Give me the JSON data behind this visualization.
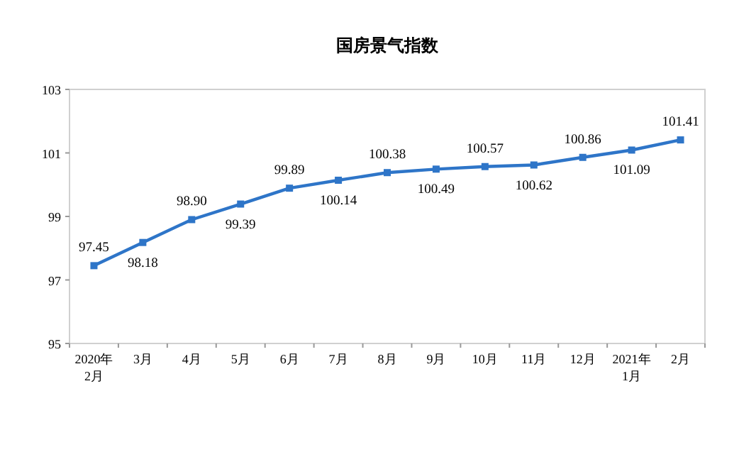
{
  "chart_data": {
    "type": "line",
    "title": "国房景气指数",
    "categories": [
      "2020年\n2月",
      "3月",
      "4月",
      "5月",
      "6月",
      "7月",
      "8月",
      "9月",
      "10月",
      "11月",
      "12月",
      "2021年\n1月",
      "2月"
    ],
    "series": [
      {
        "color": "#2e75c8",
        "values": [
          97.45,
          98.18,
          98.9,
          99.39,
          99.89,
          100.14,
          100.38,
          100.49,
          100.57,
          100.62,
          100.86,
          101.09,
          101.41
        ]
      }
    ],
    "value_labels": [
      "97.45",
      "98.18",
      "98.90",
      "99.39",
      "99.89",
      "100.14",
      "100.38",
      "100.49",
      "100.57",
      "100.62",
      "100.86",
      "101.09",
      "101.41"
    ],
    "ylim": [
      95,
      103
    ],
    "yticks": [
      95,
      97,
      99,
      101,
      103
    ],
    "grid": false,
    "marker": "square",
    "line_style": "solid"
  }
}
